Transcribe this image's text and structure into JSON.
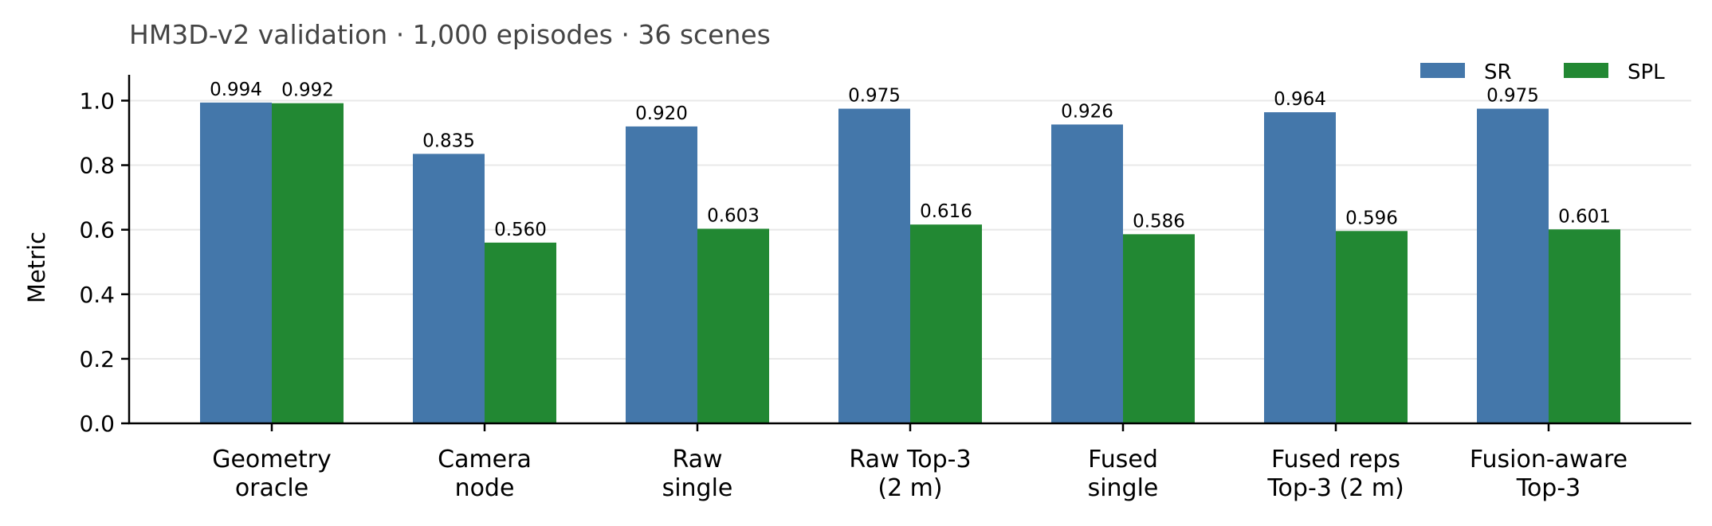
{
  "chart_data": {
    "type": "bar",
    "title": "HM3D-v2 validation · 1,000 episodes · 36 scenes",
    "xlabel": "",
    "ylabel": "Metric",
    "ylim": [
      0,
      1.08
    ],
    "yticks": [
      "0.0",
      "0.2",
      "0.4",
      "0.6",
      "0.8",
      "1.0"
    ],
    "grid": true,
    "legend_position": "top-right",
    "categories": [
      [
        "Geometry",
        "oracle"
      ],
      [
        "Camera",
        "node"
      ],
      [
        "Raw",
        "single"
      ],
      [
        "Raw Top-3",
        "(2 m)"
      ],
      [
        "Fused",
        "single"
      ],
      [
        "Fused reps",
        "Top-3 (2 m)"
      ],
      [
        "Fusion-aware",
        "Top-3"
      ]
    ],
    "series": [
      {
        "name": "SR",
        "color": "#4477aa",
        "values": [
          0.994,
          0.835,
          0.92,
          0.975,
          0.926,
          0.964,
          0.975
        ],
        "labels": [
          "0.994",
          "0.835",
          "0.920",
          "0.975",
          "0.926",
          "0.964",
          "0.975"
        ]
      },
      {
        "name": "SPL",
        "color": "#228833",
        "values": [
          0.992,
          0.56,
          0.603,
          0.616,
          0.586,
          0.596,
          0.601
        ],
        "labels": [
          "0.992",
          "0.560",
          "0.603",
          "0.616",
          "0.586",
          "0.596",
          "0.601"
        ]
      }
    ]
  }
}
